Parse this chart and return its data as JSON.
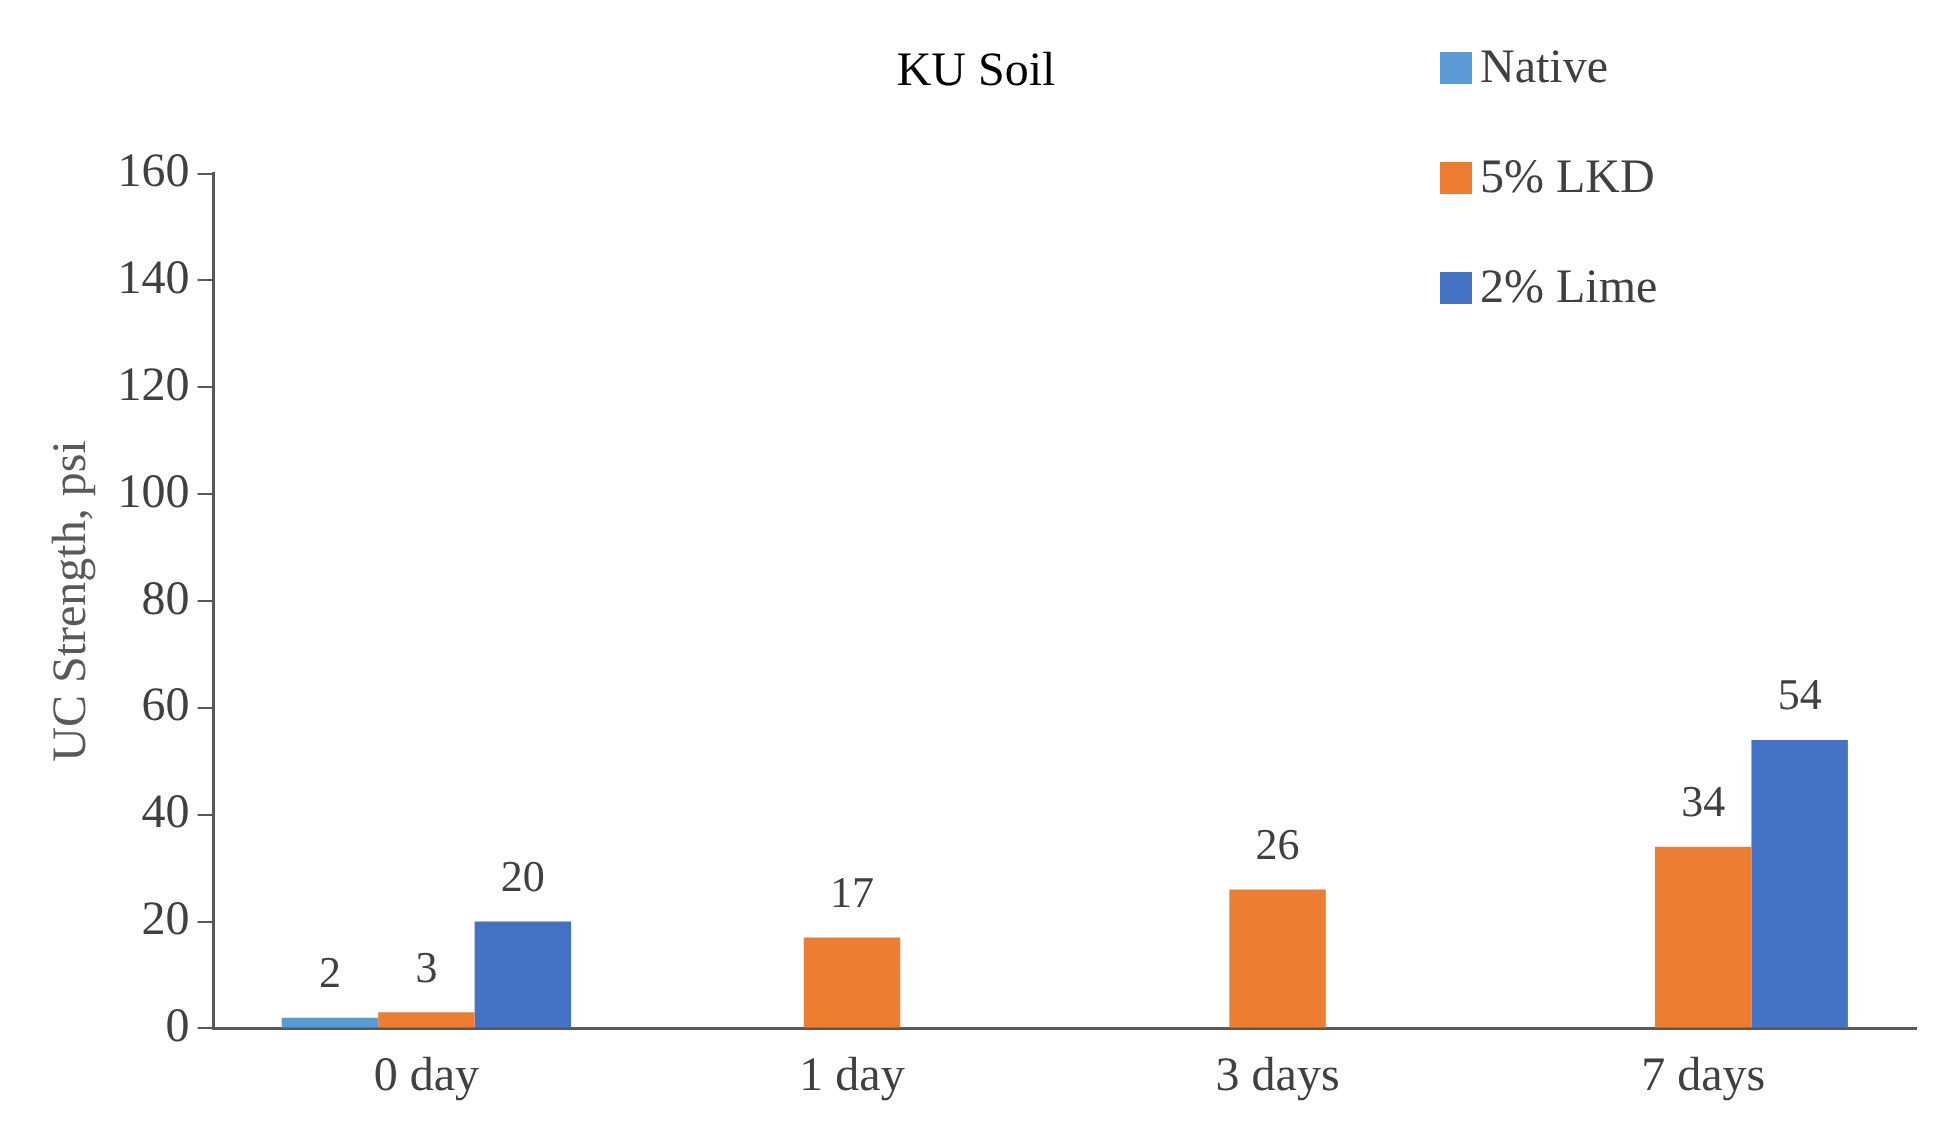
{
  "chart_data": {
    "type": "bar",
    "title": "KU Soil",
    "ylabel": "UC Strength, psi",
    "categories": [
      "0 day",
      "1 day",
      "3 days",
      "7 days"
    ],
    "series": [
      {
        "name": "Native",
        "color": "#5b9bd5",
        "values": [
          2,
          null,
          null,
          null
        ]
      },
      {
        "name": "5% LKD",
        "color": "#ed7d31",
        "values": [
          3,
          17,
          26,
          34
        ]
      },
      {
        "name": "2% Lime",
        "color": "#4472c4",
        "values": [
          20,
          null,
          null,
          54
        ]
      }
    ],
    "ylim": [
      0,
      160
    ],
    "yticks": [
      0,
      20,
      40,
      60,
      80,
      100,
      120,
      140,
      160
    ],
    "data_labels": true,
    "grid": false,
    "legend": "top right"
  }
}
